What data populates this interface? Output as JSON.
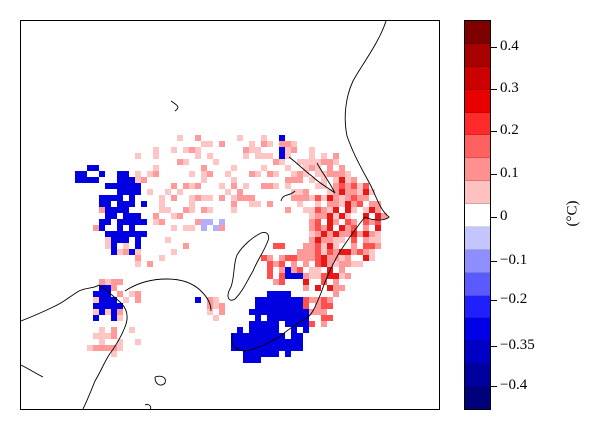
{
  "colorbar": {
    "unit": "(°C)",
    "colors": [
      "#7f0000",
      "#a80000",
      "#cc0000",
      "#e80000",
      "#ff2a2a",
      "#ff6060",
      "#ff9090",
      "#ffc0c0",
      "#ffffff",
      "#c4c4ff",
      "#8e8eff",
      "#5a5aff",
      "#2020ff",
      "#0000e8",
      "#0000c4",
      "#00009f",
      "#00007a"
    ],
    "tick_labels": [
      "0.4",
      "0.3",
      "0.2",
      "0.1",
      "0",
      "−0.1",
      "−0.2",
      "−0.35",
      "−0.4"
    ]
  },
  "map": {
    "colors": {
      "light_pink": "#ffc4c4",
      "pink": "#ff9a9a",
      "red": "#ff5050",
      "dark_red": "#e81818",
      "blue": "#0000e0",
      "light_blue": "#b0b0ff",
      "coast": "#000000"
    }
  }
}
